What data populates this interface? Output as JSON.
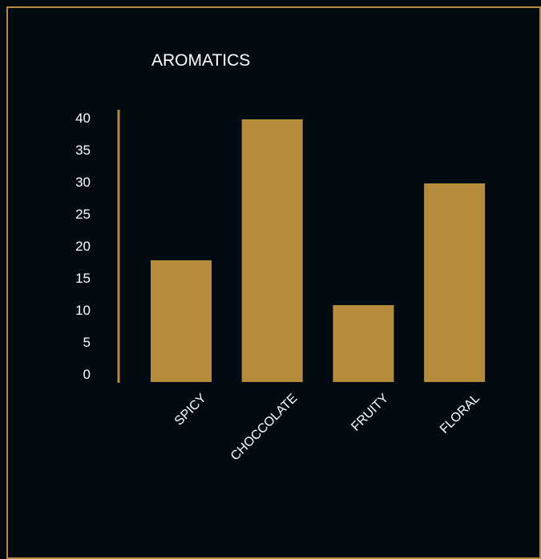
{
  "chart_data": {
    "type": "bar",
    "title": "AROMATICS",
    "categories": [
      "SPICY",
      "CHOCCOLATE",
      "FRUITY",
      "FLORAL"
    ],
    "values": [
      19,
      41,
      12,
      31
    ],
    "ylim": [
      0,
      40
    ],
    "yticks": [
      0,
      5,
      10,
      15,
      20,
      25,
      30,
      35,
      40
    ],
    "grid": false,
    "xlabel": "",
    "ylabel": ""
  },
  "colors": {
    "background": "#020a12",
    "bar": "#b58b3c",
    "text": "#ffffff",
    "border": "#b58b3c"
  }
}
